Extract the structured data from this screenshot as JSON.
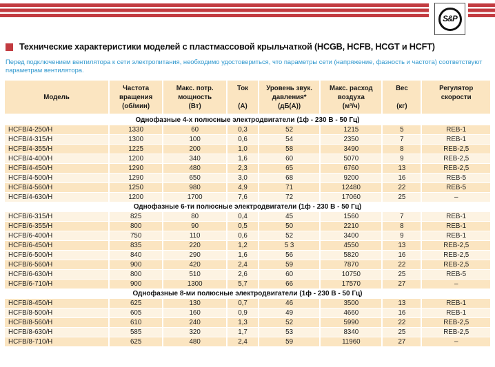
{
  "page": {
    "logo_text": "S&P",
    "title": "Технические характеристики моделей с пластмассовой крыльчаткой (HCGB, HCFB, HCGT и HCFT)",
    "intro": "Перед подключением вентилятора к сети электропитания, необходимо удостовериться, что параметры сети (напряжение, фазность и частота) соответствуют параметрам вентилятора."
  },
  "colors": {
    "accent_red": "#C23B40",
    "info_blue": "#2E97CE",
    "row_peach": "#FBE5C1",
    "row_light": "#FDF3E2"
  },
  "table": {
    "columns": [
      {
        "id": "model",
        "lines": [
          "Модель"
        ],
        "width": 21.6,
        "align": "left"
      },
      {
        "id": "rpm",
        "lines": [
          "Частота",
          "вращения",
          "(об/мин)"
        ],
        "width": 11.1
      },
      {
        "id": "power",
        "lines": [
          "Макс. потр.",
          "мощность",
          "(Вт)"
        ],
        "width": 13.2
      },
      {
        "id": "current",
        "lines": [
          "Ток",
          "",
          "(А)"
        ],
        "width": 6.5
      },
      {
        "id": "noise",
        "lines": [
          "Уровень звук.",
          "давления*",
          "(дБ(А))"
        ],
        "width": 12.7
      },
      {
        "id": "airflow",
        "lines": [
          "Макс. расход",
          "воздуха",
          "(м³/ч)"
        ],
        "width": 12.8
      },
      {
        "id": "weight",
        "lines": [
          "Вес",
          "",
          "(кг)"
        ],
        "width": 8.1
      },
      {
        "id": "regulator",
        "lines": [
          "Регулятор",
          "скорости"
        ],
        "width": 14.0
      }
    ],
    "sections": [
      {
        "title": "Однофазные 4-х полюсные электродвигатели (1ф - 230 В - 50 Гц)",
        "first_row_shade": "peach",
        "rows": [
          [
            "HCFB/4-250/H",
            "1330",
            "60",
            "0,3",
            "52",
            "1215",
            "5",
            "REB-1"
          ],
          [
            "HCFB/4-315/H",
            "1300",
            "100",
            "0,6",
            "54",
            "2350",
            "7",
            "REB-1"
          ],
          [
            "HCFB/4-355/H",
            "1225",
            "200",
            "1,0",
            "58",
            "3490",
            "8",
            "REB-2,5"
          ],
          [
            "HCFB/4-400/H",
            "1200",
            "340",
            "1,6",
            "60",
            "5070",
            "9",
            "REB-2,5"
          ],
          [
            "HCFB/4-450/H",
            "1290",
            "480",
            "2,3",
            "65",
            "6760",
            "13",
            "REB-2,5"
          ],
          [
            "HCFB/4-500/H",
            "1290",
            "650",
            "3,0",
            "68",
            "9200",
            "16",
            "REB-5"
          ],
          [
            "HCFB/4-560/H",
            "1250",
            "980",
            "4,9",
            "71",
            "12480",
            "22",
            "REB-5"
          ],
          [
            "HCFB/4-630/H",
            "1200",
            "1700",
            "7,6",
            "72",
            "17060",
            "25",
            "–"
          ]
        ]
      },
      {
        "title": "Однофазные 6-ти полюсные электродвигатели (1ф - 230 В - 50 Гц)",
        "first_row_shade": "light",
        "rows": [
          [
            "HCFB/6-315/H",
            "825",
            "80",
            "0,4",
            "45",
            "1560",
            "7",
            "REB-1"
          ],
          [
            "HCFB/6-355/H",
            "800",
            "90",
            "0,5",
            "50",
            "2210",
            "8",
            "REB-1"
          ],
          [
            "HCFB/6-400/H",
            "750",
            "110",
            "0,6",
            "52",
            "3400",
            "9",
            "REB-1"
          ],
          [
            "HCFB/6-450/H",
            "835",
            "220",
            "1,2",
            "5 3",
            "4550",
            "13",
            "REB-2,5"
          ],
          [
            "HCFB/6-500/H",
            "840",
            "290",
            "1,6",
            "56",
            "5820",
            "16",
            "REB-2,5"
          ],
          [
            "HCFB/6-560/H",
            "900",
            "420",
            "2,4",
            "59",
            "7870",
            "22",
            "REB-2,5"
          ],
          [
            "HCFB/6-630/H",
            "800",
            "510",
            "2,6",
            "60",
            "10750",
            "25",
            "REB-5"
          ],
          [
            "HCFB/6-710/H",
            "900",
            "1300",
            "5,7",
            "66",
            "17570",
            "27",
            "–"
          ]
        ]
      },
      {
        "title": "Однофазные 8-ми полюсные электродвигатели (1ф - 230 В - 50 Гц)",
        "first_row_shade": "peach",
        "rows": [
          [
            "HCFB/8-450/H",
            "625",
            "130",
            "0,7",
            "46",
            "3500",
            "13",
            "REB-1"
          ],
          [
            "HCFB/8-500/H",
            "605",
            "160",
            "0,9",
            "49",
            "4660",
            "16",
            "REB-1"
          ],
          [
            "HCFB/8-560/H",
            "610",
            "240",
            "1,3",
            "52",
            "5990",
            "22",
            "REB-2,5"
          ],
          [
            "HCFB/8-630/H",
            "585",
            "320",
            "1,7",
            "53",
            "8340",
            "25",
            "REB-2,5"
          ],
          [
            "HCFB/8-710/H",
            "625",
            "480",
            "2,4",
            "59",
            "11960",
            "27",
            "–"
          ]
        ]
      }
    ]
  }
}
